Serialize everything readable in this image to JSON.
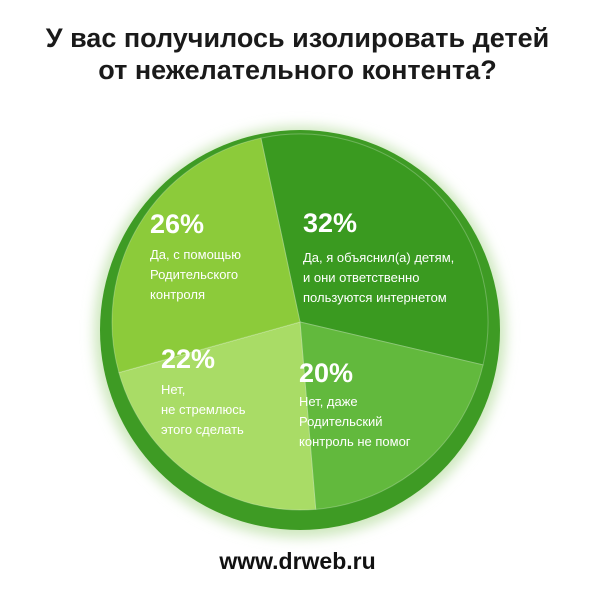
{
  "title": {
    "line1": "У вас получилось изолировать детей",
    "line2": "от нежелательного контента?"
  },
  "footer": "www.drweb.ru",
  "colors": {
    "rim": "#3e9b24",
    "slice_32": "#3a9a20",
    "slice_20": "#62b93d",
    "slice_22": "#a9dc66",
    "slice_26": "#8ccb3a"
  },
  "chart_data": {
    "type": "pie",
    "slices": [
      {
        "value": 32,
        "label": "32%",
        "text": [
          "Да, я объяснил(а) детям,",
          "и они ответственно",
          "пользуются интернетом"
        ]
      },
      {
        "value": 20,
        "label": "20%",
        "text": [
          "Нет, даже",
          "Родительский",
          "контроль не помог"
        ]
      },
      {
        "value": 22,
        "label": "22%",
        "text": [
          "Нет,",
          "не стремлюсь",
          "этого сделать"
        ]
      },
      {
        "value": 26,
        "label": "26%",
        "text": [
          "Да, с помощью",
          "Родительского",
          "контроля"
        ]
      }
    ]
  }
}
